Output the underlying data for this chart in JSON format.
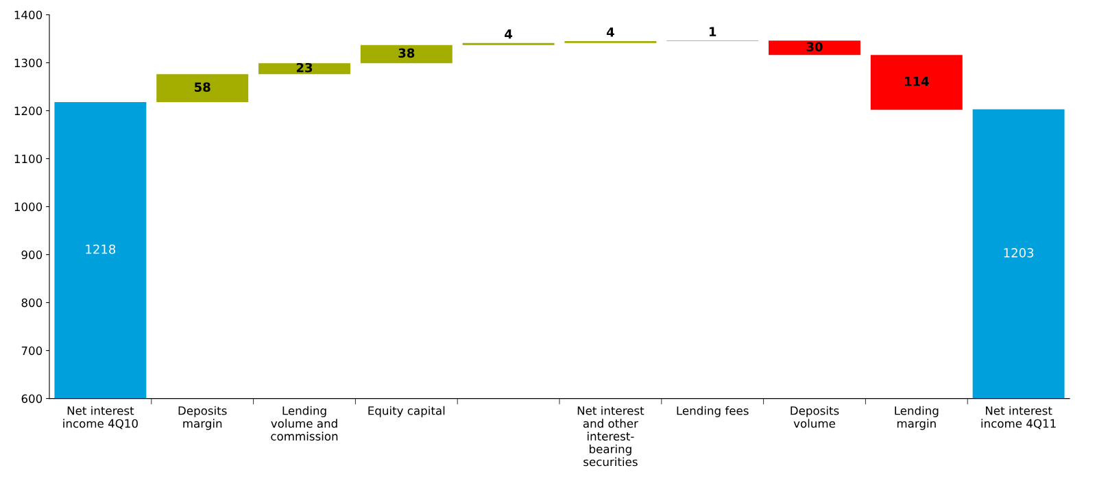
{
  "chart_data": {
    "type": "bar",
    "categories": [
      "Net interest\nincome 4Q10",
      "Deposits\nmargin",
      "Lending\nvolume and\ncommission",
      "Equity capital",
      null,
      "Net interest\nand other\ninterest-\nbearing\nsecurities",
      "Lending fees",
      "Deposits\nvolume",
      "Lending\nmargin",
      "Net interest\nincome 4Q11"
    ],
    "values": [
      1218,
      58,
      23,
      38,
      4,
      4,
      1,
      -30,
      -114,
      1203
    ],
    "base": [
      null,
      1218,
      1276,
      1299,
      1337,
      1341,
      1345,
      1346,
      1316,
      null
    ],
    "colors": [
      "#00a0dc",
      "#a2ad00",
      "#a2ad00",
      "#a2ad00",
      "#a2ad00",
      "#a2ad00",
      "#a2ad00",
      "#ff0000",
      "#ff0000",
      "#00a0dc"
    ],
    "value_labels": [
      "1218",
      "58",
      "23",
      "38",
      "4",
      "4",
      "1",
      "30",
      "114",
      "1203"
    ],
    "ylim": [
      600,
      1400
    ],
    "yticks": [
      600,
      700,
      800,
      900,
      1000,
      1100,
      1200,
      1300,
      1400
    ],
    "grid": false
  }
}
